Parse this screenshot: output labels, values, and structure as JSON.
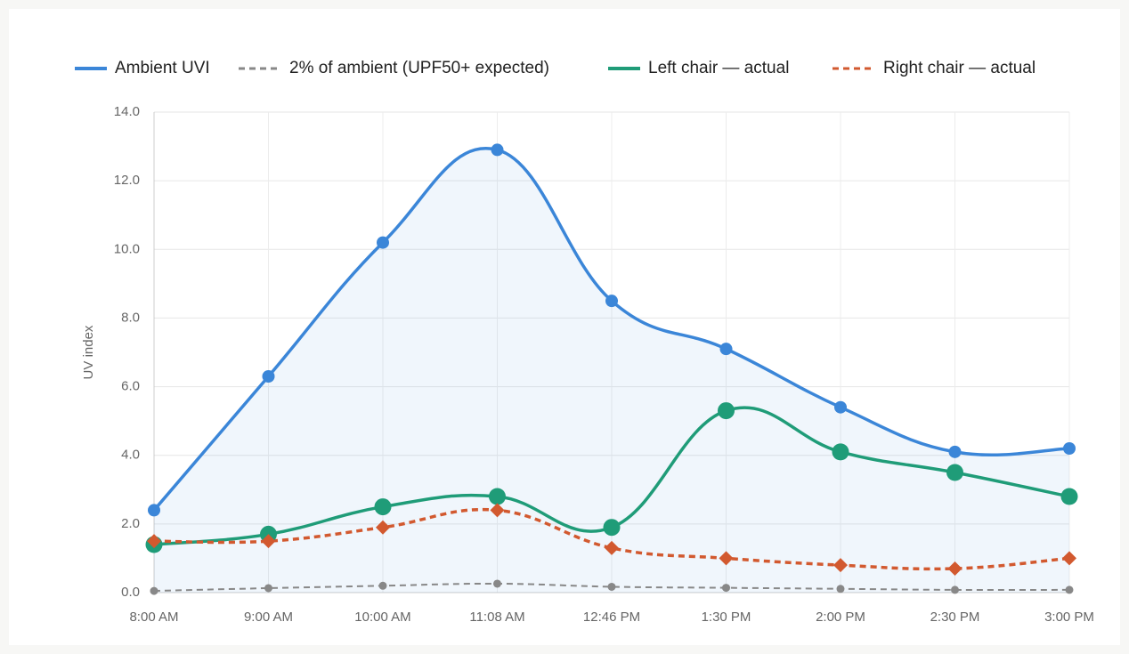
{
  "chart_data": {
    "type": "line",
    "y_label": "UV index",
    "categories": [
      "8:00 AM",
      "9:00 AM",
      "10:00 AM",
      "11:08 AM",
      "12:46 PM",
      "1:30 PM",
      "2:00 PM",
      "2:30 PM",
      "3:00 PM"
    ],
    "series": [
      {
        "name": "Ambient UVI",
        "color": "#3b86d8",
        "dashed": false,
        "fill": true,
        "marker": "circle",
        "values": [
          2.4,
          6.3,
          10.2,
          12.9,
          8.5,
          7.1,
          5.4,
          4.1,
          4.2
        ]
      },
      {
        "name": "2% of ambient (UPF50+ expected)",
        "color": "#888888",
        "dashed": true,
        "fill": false,
        "marker": "circle",
        "values": [
          0.05,
          0.13,
          0.2,
          0.26,
          0.17,
          0.14,
          0.11,
          0.08,
          0.08
        ]
      },
      {
        "name": "Left chair — actual",
        "color": "#1f9c78",
        "dashed": false,
        "fill": false,
        "marker": "circle",
        "values": [
          1.4,
          1.7,
          2.5,
          2.8,
          1.9,
          5.3,
          4.1,
          3.5,
          2.8
        ]
      },
      {
        "name": "Right chair — actual",
        "color": "#d2592f",
        "dashed": true,
        "fill": false,
        "marker": "diamond",
        "values": [
          1.5,
          1.5,
          1.9,
          2.4,
          1.3,
          1.0,
          0.8,
          0.7,
          1.0
        ]
      }
    ],
    "ylim": [
      0,
      14
    ],
    "yticks": [
      {
        "value": 0,
        "label": "0.0"
      },
      {
        "value": 2,
        "label": "2.0"
      },
      {
        "value": 4,
        "label": "4.0"
      },
      {
        "value": 6,
        "label": "6.0"
      },
      {
        "value": 8,
        "label": "8.0"
      },
      {
        "value": 10,
        "label": "10.0"
      },
      {
        "value": 12,
        "label": "12.0"
      },
      {
        "value": 14,
        "label": "14.0"
      }
    ],
    "grid": true
  }
}
